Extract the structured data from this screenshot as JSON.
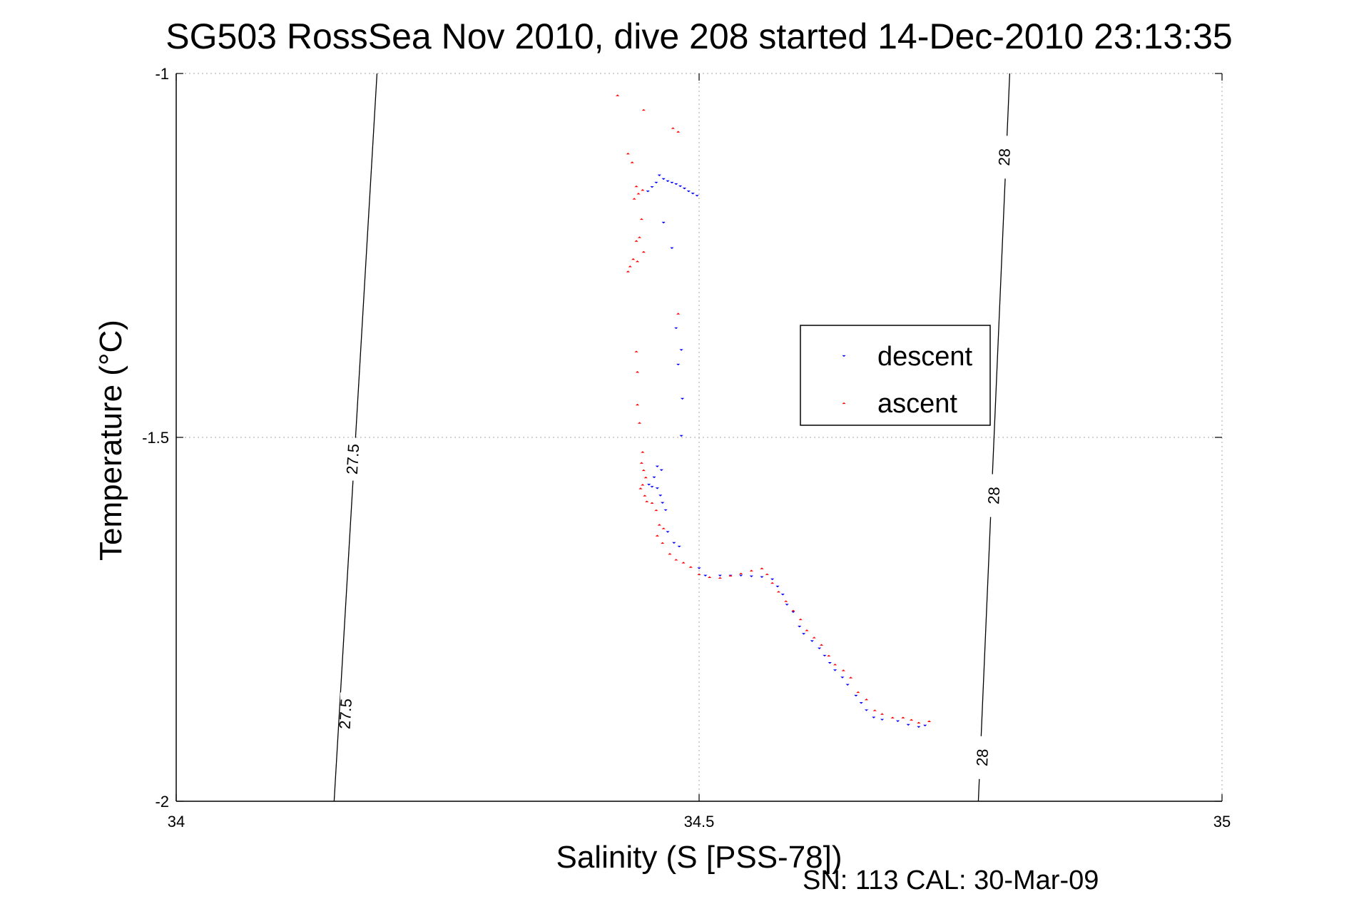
{
  "chart_data": {
    "type": "scatter",
    "title": "SG503 RossSea Nov 2010, dive 208 started 14-Dec-2010 23:13:35",
    "xlabel": "Salinity (S [PSS-78])",
    "ylabel": "Temperature (°C)",
    "xlim": [
      34,
      35
    ],
    "ylim": [
      -2,
      -1
    ],
    "x_ticks": [
      34,
      34.5,
      35
    ],
    "x_tick_labels": [
      "34",
      "34.5",
      "35"
    ],
    "y_ticks": [
      -2,
      -1.5,
      -1
    ],
    "y_tick_labels": [
      "-2",
      "-1.5",
      "-1"
    ],
    "grid": true,
    "legend": {
      "placement": "center-right",
      "entries": [
        "descent",
        "ascent"
      ]
    },
    "footnote": "SN: 113  CAL: 30-Mar-09",
    "colors": {
      "descent": "#0000ff",
      "ascent": "#ff0000",
      "axis": "#000000",
      "grid": "#b8b8b8"
    },
    "density_contours": [
      {
        "label": "27.5",
        "points": [
          [
            34.192,
            -1.0
          ],
          [
            34.151,
            -2.0
          ]
        ],
        "label_positions": [
          [
            34.17,
            -1.53
          ],
          [
            34.163,
            -1.88
          ]
        ]
      },
      {
        "label": "28",
        "points": [
          [
            34.797,
            -1.0
          ],
          [
            34.767,
            -2.0
          ]
        ],
        "label_positions": [
          [
            34.793,
            -1.115
          ],
          [
            34.783,
            -1.58
          ],
          [
            34.772,
            -1.94
          ]
        ]
      }
    ],
    "series": [
      {
        "name": "descent",
        "color": "#0000ff",
        "marker": "triangle-down",
        "points": [
          [
            34.462,
            -1.14
          ],
          [
            34.466,
            -1.145
          ],
          [
            34.47,
            -1.148
          ],
          [
            34.474,
            -1.15
          ],
          [
            34.478,
            -1.152
          ],
          [
            34.482,
            -1.155
          ],
          [
            34.486,
            -1.158
          ],
          [
            34.49,
            -1.162
          ],
          [
            34.494,
            -1.165
          ],
          [
            34.498,
            -1.168
          ],
          [
            34.459,
            -1.15
          ],
          [
            34.455,
            -1.156
          ],
          [
            34.451,
            -1.162
          ],
          [
            34.466,
            -1.205
          ],
          [
            34.474,
            -1.24
          ],
          [
            34.478,
            -1.35
          ],
          [
            34.483,
            -1.38
          ],
          [
            34.48,
            -1.4
          ],
          [
            34.484,
            -1.447
          ],
          [
            34.483,
            -1.498
          ],
          [
            34.46,
            -1.54
          ],
          [
            34.464,
            -1.545
          ],
          [
            34.457,
            -1.555
          ],
          [
            34.452,
            -1.565
          ],
          [
            34.455,
            -1.568
          ],
          [
            34.46,
            -1.57
          ],
          [
            34.463,
            -1.58
          ],
          [
            34.465,
            -1.59
          ],
          [
            34.468,
            -1.6
          ],
          [
            34.47,
            -1.63
          ],
          [
            34.476,
            -1.645
          ],
          [
            34.481,
            -1.65
          ],
          [
            34.5,
            -1.68
          ],
          [
            34.506,
            -1.69
          ],
          [
            34.52,
            -1.69
          ],
          [
            34.53,
            -1.69
          ],
          [
            34.54,
            -1.69
          ],
          [
            34.55,
            -1.691
          ],
          [
            34.56,
            -1.692
          ],
          [
            34.57,
            -1.695
          ],
          [
            34.575,
            -1.705
          ],
          [
            34.58,
            -1.716
          ],
          [
            34.584,
            -1.73
          ],
          [
            34.59,
            -1.74
          ],
          [
            34.596,
            -1.76
          ],
          [
            34.6,
            -1.77
          ],
          [
            34.608,
            -1.78
          ],
          [
            34.615,
            -1.79
          ],
          [
            34.62,
            -1.8
          ],
          [
            34.625,
            -1.81
          ],
          [
            34.63,
            -1.82
          ],
          [
            34.637,
            -1.83
          ],
          [
            34.642,
            -1.84
          ],
          [
            34.65,
            -1.855
          ],
          [
            34.655,
            -1.865
          ],
          [
            34.66,
            -1.875
          ],
          [
            34.667,
            -1.885
          ],
          [
            34.675,
            -1.888
          ],
          [
            34.69,
            -1.89
          ],
          [
            34.7,
            -1.895
          ],
          [
            34.71,
            -1.898
          ],
          [
            34.716,
            -1.896
          ]
        ]
      },
      {
        "name": "ascent",
        "color": "#ff0000",
        "marker": "triangle-up",
        "points": [
          [
            34.422,
            -1.03
          ],
          [
            34.447,
            -1.05
          ],
          [
            34.475,
            -1.075
          ],
          [
            34.48,
            -1.08
          ],
          [
            34.432,
            -1.11
          ],
          [
            34.436,
            -1.122
          ],
          [
            34.44,
            -1.155
          ],
          [
            34.446,
            -1.16
          ],
          [
            34.442,
            -1.165
          ],
          [
            34.438,
            -1.172
          ],
          [
            34.445,
            -1.2
          ],
          [
            34.443,
            -1.225
          ],
          [
            34.44,
            -1.23
          ],
          [
            34.447,
            -1.245
          ],
          [
            34.437,
            -1.255
          ],
          [
            34.441,
            -1.258
          ],
          [
            34.434,
            -1.265
          ],
          [
            34.432,
            -1.272
          ],
          [
            34.48,
            -1.33
          ],
          [
            34.44,
            -1.382
          ],
          [
            34.441,
            -1.41
          ],
          [
            34.441,
            -1.455
          ],
          [
            34.443,
            -1.48
          ],
          [
            34.446,
            -1.52
          ],
          [
            34.445,
            -1.535
          ],
          [
            34.447,
            -1.545
          ],
          [
            34.449,
            -1.555
          ],
          [
            34.446,
            -1.565
          ],
          [
            34.444,
            -1.57
          ],
          [
            34.448,
            -1.58
          ],
          [
            34.45,
            -1.588
          ],
          [
            34.455,
            -1.59
          ],
          [
            34.459,
            -1.6
          ],
          [
            34.462,
            -1.62
          ],
          [
            34.466,
            -1.625
          ],
          [
            34.46,
            -1.635
          ],
          [
            34.465,
            -1.645
          ],
          [
            34.472,
            -1.66
          ],
          [
            34.478,
            -1.668
          ],
          [
            34.485,
            -1.672
          ],
          [
            34.492,
            -1.678
          ],
          [
            34.5,
            -1.688
          ],
          [
            34.51,
            -1.692
          ],
          [
            34.52,
            -1.693
          ],
          [
            34.53,
            -1.69
          ],
          [
            34.54,
            -1.687
          ],
          [
            34.55,
            -1.683
          ],
          [
            34.56,
            -1.68
          ],
          [
            34.565,
            -1.688
          ],
          [
            34.57,
            -1.7
          ],
          [
            34.576,
            -1.712
          ],
          [
            34.583,
            -1.725
          ],
          [
            34.59,
            -1.738
          ],
          [
            34.597,
            -1.75
          ],
          [
            34.603,
            -1.765
          ],
          [
            34.61,
            -1.775
          ],
          [
            34.617,
            -1.785
          ],
          [
            34.624,
            -1.8
          ],
          [
            34.63,
            -1.812
          ],
          [
            34.638,
            -1.82
          ],
          [
            34.645,
            -1.83
          ],
          [
            34.652,
            -1.85
          ],
          [
            34.66,
            -1.86
          ],
          [
            34.668,
            -1.875
          ],
          [
            34.675,
            -1.88
          ],
          [
            34.685,
            -1.885
          ],
          [
            34.695,
            -1.885
          ],
          [
            34.703,
            -1.888
          ],
          [
            34.71,
            -1.892
          ],
          [
            34.72,
            -1.89
          ]
        ]
      }
    ]
  }
}
